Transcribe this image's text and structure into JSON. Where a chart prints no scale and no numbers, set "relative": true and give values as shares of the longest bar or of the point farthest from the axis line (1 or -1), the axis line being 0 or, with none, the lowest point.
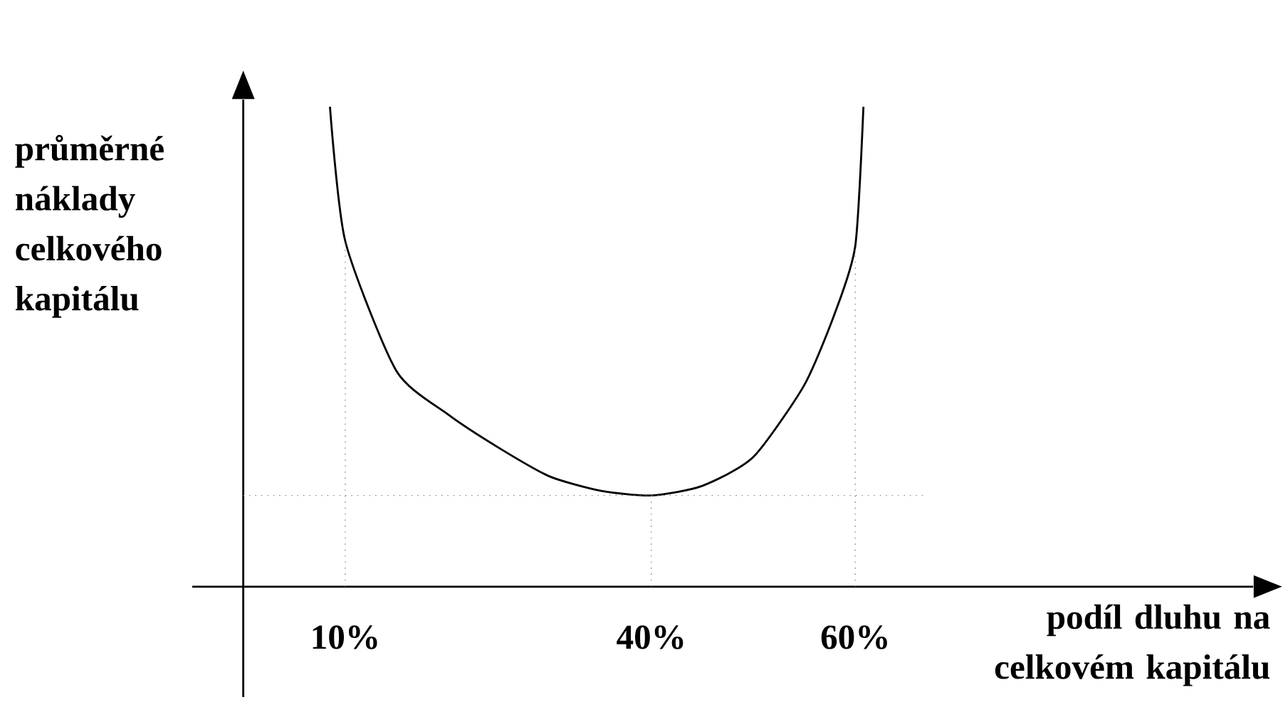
{
  "chart_data": {
    "type": "line",
    "relative": true,
    "xlabel": "podíl dluhu na celkovém kapitálu",
    "ylabel": "průměrné náklady celkového kapitálu",
    "x": [
      8.5,
      10,
      15,
      20,
      25,
      30,
      35,
      40,
      45,
      50,
      55,
      58,
      60,
      60.8
    ],
    "values": [
      1.0,
      0.72,
      0.45,
      0.36,
      0.29,
      0.23,
      0.2,
      0.19,
      0.21,
      0.27,
      0.42,
      0.57,
      0.71,
      1.0
    ],
    "color": "#000000",
    "xlim": [
      -5,
      99
    ],
    "xticks": [
      {
        "value": 10,
        "label": "10%"
      },
      {
        "value": 40,
        "label": "40%"
      },
      {
        "value": 60,
        "label": "60%"
      }
    ],
    "ref_lines": [
      {
        "axis": "x",
        "value": 10,
        "line_style": "dotted"
      },
      {
        "axis": "x",
        "value": 40,
        "line_style": "dotted"
      },
      {
        "axis": "x",
        "value": 60,
        "line_style": "dotted"
      },
      {
        "axis": "y",
        "value": 0.19,
        "line_style": "dotted"
      }
    ],
    "grid": false,
    "marker": "none",
    "line_style": "solid"
  }
}
